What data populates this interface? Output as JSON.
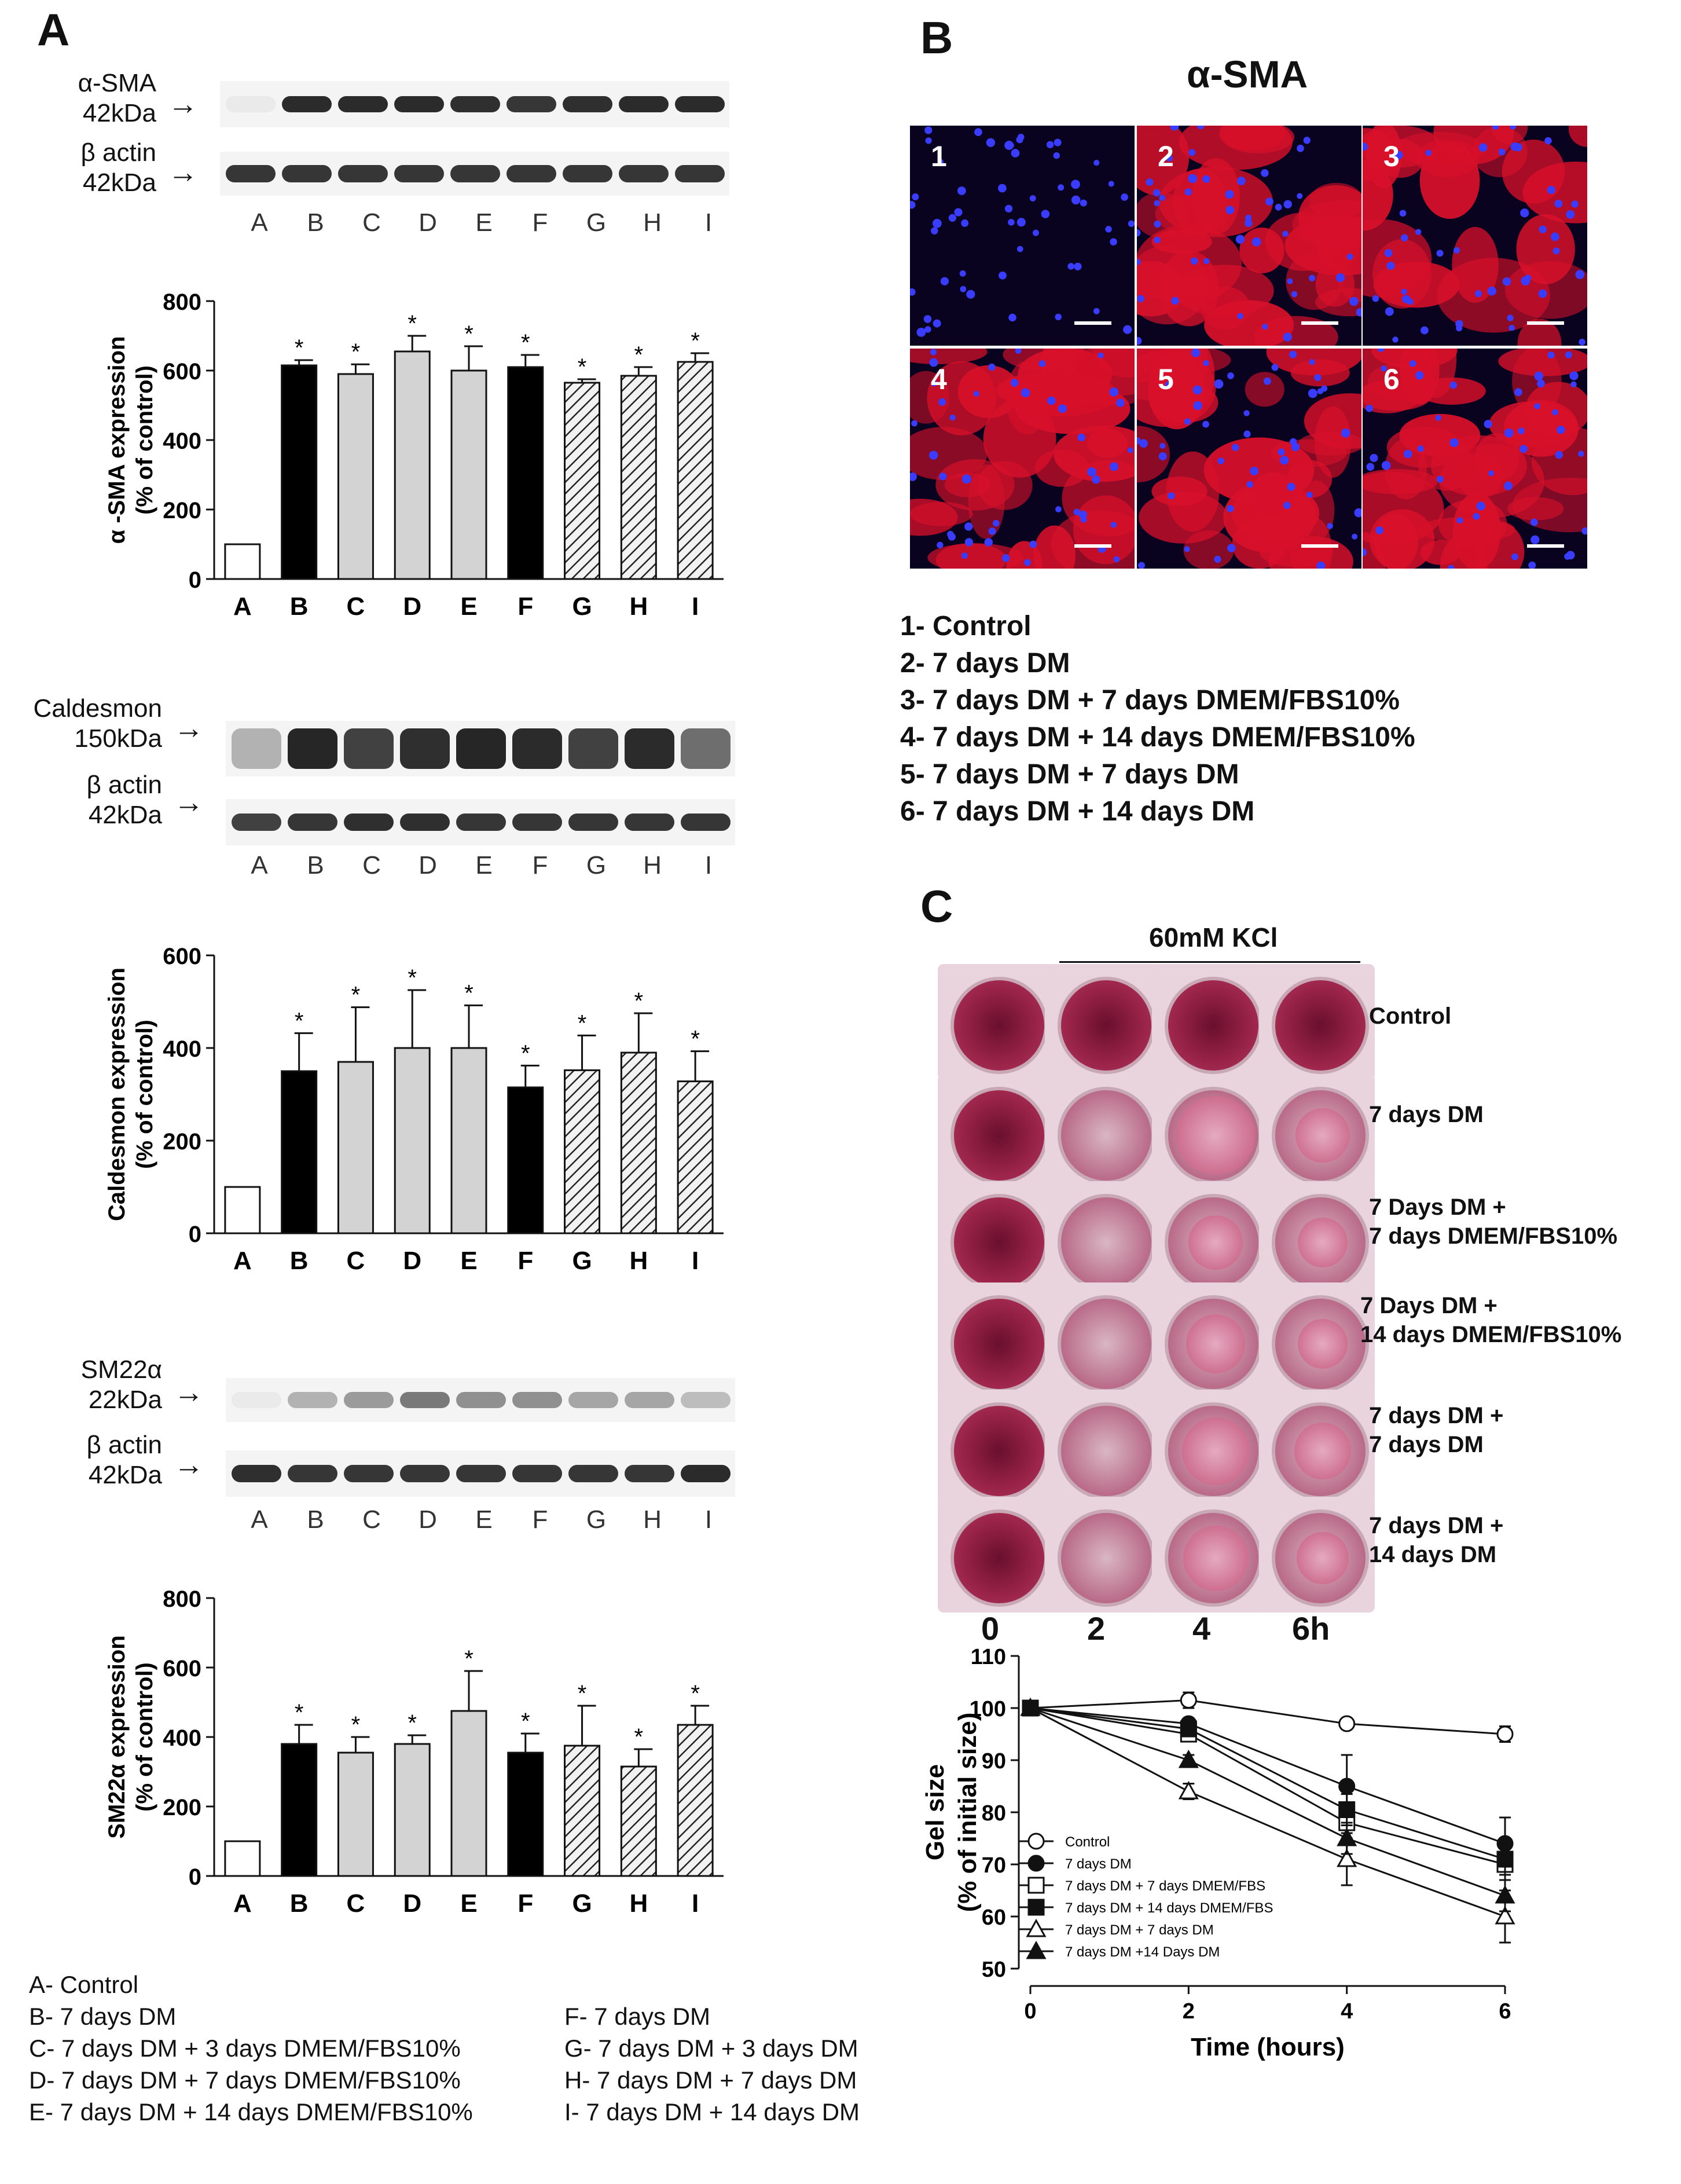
{
  "panels": {
    "a": "A",
    "b": "B",
    "c": "C"
  },
  "panel_a": {
    "lanes": [
      "A",
      "B",
      "C",
      "D",
      "E",
      "F",
      "G",
      "H",
      "I"
    ],
    "blots": [
      {
        "target_line1": "α-SMA",
        "target_line2": "42kDa",
        "loading_line1": "β actin",
        "loading_line2": "42kDa"
      },
      {
        "target_line1": "Caldesmon",
        "target_line2": "150kDa",
        "loading_line1": "β actin",
        "loading_line2": "42kDa"
      },
      {
        "target_line1": "SM22α",
        "target_line2": "22kDa",
        "loading_line1": "β actin",
        "loading_line2": "42kDa"
      }
    ],
    "significance_marker": "*",
    "legend_left": [
      "A- Control",
      "B- 7 days DM",
      "C- 7 days DM + 3 days DMEM/FBS10%",
      "D- 7 days DM + 7 days DMEM/FBS10%",
      "E- 7 days DM + 14 days DMEM/FBS10%"
    ],
    "legend_right": [
      "F- 7 days DM",
      "G- 7 days DM + 3 days DM",
      "H- 7 days DM + 7 days DM",
      "I-  7 days DM + 14 days DM"
    ]
  },
  "panel_b": {
    "title": "α-SMA",
    "images": [
      "1",
      "2",
      "3",
      "4",
      "5",
      "6"
    ],
    "legend": [
      "1- Control",
      "2- 7 days DM",
      "3- 7 days DM + 7 days DMEM/FBS10%",
      "4- 7 days DM + 14 days DMEM/FBS10%",
      "5- 7 days DM + 7 days DM",
      "6- 7 days DM + 14 days DM"
    ]
  },
  "panel_c": {
    "kcl_label": "60mM KCl",
    "time_labels": [
      "0",
      "2",
      "4",
      "6h"
    ],
    "row_labels": [
      {
        "line1": "Control",
        "line2": ""
      },
      {
        "line1": "7 days DM",
        "line2": ""
      },
      {
        "line1": "7 Days DM +",
        "line2": "7 days DMEM/FBS10%"
      },
      {
        "line1": "7 Days DM +",
        "line2": "14 days DMEM/FBS10%"
      },
      {
        "line1": "7 days DM +",
        "line2": "7 days DM"
      },
      {
        "line1": "7 days DM +",
        "line2": "14 days DM"
      }
    ]
  },
  "colors": {
    "black": "#000000",
    "grey": "#d3d3d3",
    "white": "#ffffff",
    "fluor_red": "#d8102a",
    "nuclei_blue": "#3a3cff",
    "well_pink": "#b5355c"
  },
  "chart_data": [
    {
      "type": "bar",
      "ylabel": "α -SMA expression (% of control)",
      "ylim": [
        0,
        800
      ],
      "yticks": [
        0,
        200,
        400,
        600,
        800
      ],
      "categories": [
        "A",
        "B",
        "C",
        "D",
        "E",
        "F",
        "G",
        "H",
        "I"
      ],
      "values": [
        100,
        615,
        590,
        655,
        600,
        610,
        565,
        585,
        625
      ],
      "errors": [
        0,
        15,
        28,
        45,
        70,
        35,
        10,
        25,
        25
      ],
      "fills": [
        "white",
        "black",
        "grey",
        "grey",
        "grey",
        "black",
        "hatched",
        "hatched",
        "hatched"
      ],
      "significant": [
        false,
        true,
        true,
        true,
        true,
        true,
        true,
        true,
        true
      ]
    },
    {
      "type": "bar",
      "ylabel": "Caldesmon expression (% of control)",
      "ylim": [
        0,
        600
      ],
      "yticks": [
        0,
        200,
        400,
        600
      ],
      "categories": [
        "A",
        "B",
        "C",
        "D",
        "E",
        "F",
        "G",
        "H",
        "I"
      ],
      "values": [
        100,
        350,
        370,
        400,
        400,
        315,
        352,
        390,
        328
      ],
      "errors": [
        0,
        82,
        118,
        125,
        92,
        47,
        75,
        85,
        65
      ],
      "fills": [
        "white",
        "black",
        "grey",
        "grey",
        "grey",
        "black",
        "hatched",
        "hatched",
        "hatched"
      ],
      "significant": [
        false,
        true,
        true,
        true,
        true,
        true,
        true,
        true,
        true
      ]
    },
    {
      "type": "bar",
      "ylabel": "SM22α expression (% of control)",
      "ylim": [
        0,
        800
      ],
      "yticks": [
        0,
        200,
        400,
        600,
        800
      ],
      "categories": [
        "A",
        "B",
        "C",
        "D",
        "E",
        "F",
        "G",
        "H",
        "I"
      ],
      "values": [
        100,
        380,
        355,
        380,
        475,
        355,
        375,
        315,
        435
      ],
      "errors": [
        0,
        55,
        45,
        25,
        115,
        55,
        115,
        50,
        55
      ],
      "fills": [
        "white",
        "black",
        "grey",
        "grey",
        "grey",
        "black",
        "hatched",
        "hatched",
        "hatched"
      ],
      "significant": [
        false,
        true,
        true,
        true,
        true,
        true,
        true,
        true,
        true
      ]
    },
    {
      "type": "line",
      "xlabel": "Time (hours)",
      "ylabel": "Gel size (% of initial size)",
      "xlim": [
        0,
        6
      ],
      "ylim": [
        50,
        110
      ],
      "xticks": [
        0,
        2,
        4,
        6
      ],
      "yticks": [
        50,
        60,
        70,
        80,
        90,
        100,
        110
      ],
      "x": [
        0,
        2,
        4,
        6
      ],
      "series": [
        {
          "name": "Control",
          "marker": "open-circle",
          "values": [
            100,
            101.5,
            97,
            95
          ],
          "errors": [
            0,
            1.5,
            0.5,
            1.5
          ]
        },
        {
          "name": "7 days DM",
          "marker": "filled-circle",
          "values": [
            100,
            97,
            85,
            74
          ],
          "errors": [
            0,
            1,
            6,
            5
          ]
        },
        {
          "name": "7 days DM + 7 days DMEM/FBS",
          "marker": "open-square",
          "values": [
            100,
            95,
            78,
            70
          ],
          "errors": [
            0,
            1,
            3,
            3
          ]
        },
        {
          "name": "7 days DM + 14 days DMEM/FBS",
          "marker": "filled-square",
          "values": [
            100,
            96,
            80.5,
            71
          ],
          "errors": [
            0,
            1,
            3,
            3
          ]
        },
        {
          "name": "7 days DM + 7 days DM",
          "marker": "open-triangle",
          "values": [
            100,
            84,
            71,
            60
          ],
          "errors": [
            0,
            1.5,
            5,
            5
          ]
        },
        {
          "name": "7 days DM +14 Days DM",
          "marker": "filled-triangle",
          "values": [
            100,
            90,
            75,
            64
          ],
          "errors": [
            0,
            1,
            3,
            3
          ]
        }
      ]
    }
  ]
}
